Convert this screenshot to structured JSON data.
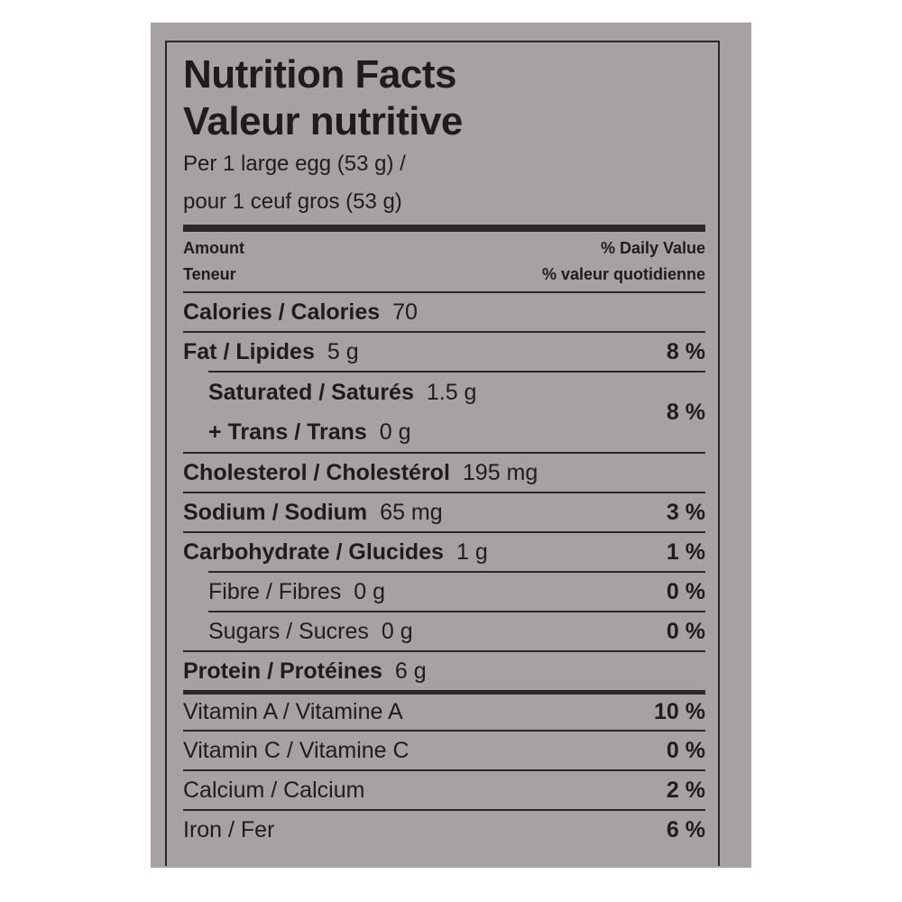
{
  "title": [
    "Nutrition Facts",
    "Valeur nutritive"
  ],
  "serving": [
    "Per 1 large egg (53 g) /",
    "pour 1 ceuf gros (53 g)"
  ],
  "header": {
    "amount": [
      "Amount",
      "Teneur"
    ],
    "daily_value": [
      "% Daily Value",
      "% valeur quotidienne"
    ]
  },
  "nutrients": [
    {
      "name": "Calories / Calories",
      "amount": "70"
    },
    {
      "name": "Fat / Lipides",
      "amount": "5 g",
      "dv": "8 %",
      "sub": [
        {
          "name": "Saturated / Saturés",
          "amount": "1.5 g"
        },
        {
          "name": "+ Trans / Trans",
          "amount": "0 g"
        }
      ],
      "sub_dv": "8 %"
    },
    {
      "name": "Cholesterol / Cholestérol",
      "amount": "195 mg"
    },
    {
      "name": "Sodium / Sodium",
      "amount": "65 mg",
      "dv": "3 %"
    },
    {
      "name": "Carbohydrate / Glucides",
      "amount": "1 g",
      "dv": "1 %",
      "sub": [
        {
          "name": "Fibre / Fibres",
          "amount": "0 g",
          "dv": "0 %"
        },
        {
          "name": "Sugars / Sucres",
          "amount": "0 g",
          "dv": "0 %"
        }
      ]
    },
    {
      "name": "Protein / Protéines",
      "amount": "6 g"
    }
  ],
  "vitamins": [
    {
      "name": "Vitamin A / Vitamine A",
      "dv": "10 %"
    },
    {
      "name": "Vitamin C / Vitamine C",
      "dv": "0 %"
    },
    {
      "name": "Calcium / Calcium",
      "dv": "2 %"
    },
    {
      "name": "Iron / Fer",
      "dv": "6 %"
    }
  ]
}
